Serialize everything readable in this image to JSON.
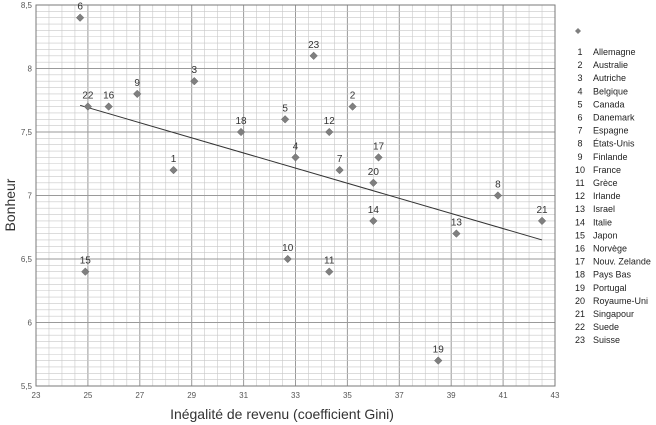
{
  "chart_data": {
    "type": "scatter",
    "title": "",
    "xlabel": "Inégalité de revenu (coefficient Gini)",
    "ylabel": "Bonheur",
    "xlim": [
      23,
      43
    ],
    "ylim": [
      5.5,
      8.5
    ],
    "x_ticks": [
      "23",
      "25",
      "27",
      "29",
      "31",
      "33",
      "35",
      "37",
      "39",
      "41",
      "43"
    ],
    "y_ticks": [
      "5,5",
      "6",
      "6,5",
      "7",
      "7,5",
      "8",
      "8,5"
    ],
    "grid": true,
    "legend_position": "right",
    "marker": "diamond",
    "marker_color": "#7f7f7f",
    "points": [
      {
        "id": "1",
        "country": "Allemagne",
        "x": 28.3,
        "y": 7.2
      },
      {
        "id": "2",
        "country": "Australie",
        "x": 35.2,
        "y": 7.7
      },
      {
        "id": "3",
        "country": "Autriche",
        "x": 29.1,
        "y": 7.9
      },
      {
        "id": "4",
        "country": "Belgique",
        "x": 33.0,
        "y": 7.3
      },
      {
        "id": "5",
        "country": "Canada",
        "x": 32.6,
        "y": 7.6
      },
      {
        "id": "6",
        "country": "Danemark",
        "x": 24.7,
        "y": 8.4
      },
      {
        "id": "7",
        "country": "Espagne",
        "x": 34.7,
        "y": 7.2
      },
      {
        "id": "8",
        "country": "États-Unis",
        "x": 40.8,
        "y": 7.0
      },
      {
        "id": "9",
        "country": "Finlande",
        "x": 26.9,
        "y": 7.8
      },
      {
        "id": "10",
        "country": "France",
        "x": 32.7,
        "y": 6.5
      },
      {
        "id": "11",
        "country": "Grèce",
        "x": 34.3,
        "y": 6.4
      },
      {
        "id": "12",
        "country": "Irlande",
        "x": 34.3,
        "y": 7.5
      },
      {
        "id": "13",
        "country": "Israel",
        "x": 39.2,
        "y": 6.7
      },
      {
        "id": "14",
        "country": "Italie",
        "x": 36.0,
        "y": 6.8
      },
      {
        "id": "15",
        "country": "Japon",
        "x": 24.9,
        "y": 6.4
      },
      {
        "id": "16",
        "country": "Norvège",
        "x": 25.8,
        "y": 7.7
      },
      {
        "id": "17",
        "country": "Nouv. Zelande",
        "x": 36.2,
        "y": 7.3
      },
      {
        "id": "18",
        "country": "Pays Bas",
        "x": 30.9,
        "y": 7.5
      },
      {
        "id": "19",
        "country": "Portugal",
        "x": 38.5,
        "y": 5.7
      },
      {
        "id": "20",
        "country": "Royaume-Uni",
        "x": 36.0,
        "y": 7.1
      },
      {
        "id": "21",
        "country": "Singapour",
        "x": 42.5,
        "y": 6.8
      },
      {
        "id": "22",
        "country": "Suede",
        "x": 25.0,
        "y": 7.7
      },
      {
        "id": "23",
        "country": "Suisse",
        "x": 33.7,
        "y": 8.1
      }
    ],
    "trendline": {
      "x": [
        24.7,
        42.5
      ],
      "y": [
        7.71,
        6.65
      ],
      "color": "#333333"
    }
  }
}
